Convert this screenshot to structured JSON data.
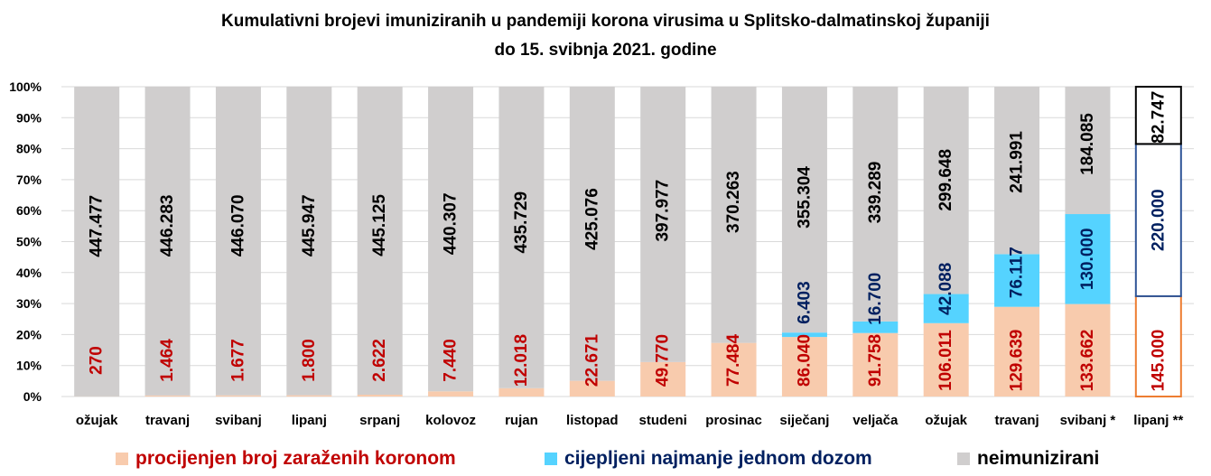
{
  "title": "Kumulativni brojevi imuniziranih u pandemiji korona virusima u Splitsko-dalmatinskoj županiji",
  "subtitle": "do 15. svibnja 2021. godine",
  "colors": {
    "infected": "#F8CBAD",
    "vaccinated": "#55D3FF",
    "unimmunized": "#D0CECE",
    "infected_text": "#C00000",
    "vaccinated_text": "#002060",
    "unimmunized_text": "#000000",
    "outline_infected": "#ED7D31",
    "outline_vaccinated": "#2F5597"
  },
  "legend": [
    {
      "label": "procijenjen broj zaraženih koronom",
      "color": "#F8CBAD",
      "text_color": "#C00000"
    },
    {
      "label": "cijepljeni najmanje jednom dozom",
      "color": "#55D3FF",
      "text_color": "#002060"
    },
    {
      "label": "neimunizirani",
      "color": "#D0CECE",
      "text_color": "#000000"
    }
  ],
  "chart_data": {
    "type": "bar",
    "stacked": "percent",
    "title": "Kumulativni brojevi imuniziranih u pandemiji korona virusima u Splitsko-dalmatinskoj županiji",
    "subtitle": "do 15. svibnja 2021. godine",
    "xlabel": "",
    "ylabel": "",
    "ylim": [
      0,
      100
    ],
    "yticks": [
      "0%",
      "10%",
      "20%",
      "30%",
      "40%",
      "50%",
      "60%",
      "70%",
      "80%",
      "90%",
      "100%"
    ],
    "grid": true,
    "legend_position": "bottom",
    "categories": [
      "ožujak",
      "travanj",
      "svibanj",
      "lipanj",
      "srpanj",
      "kolovoz",
      "rujan",
      "listopad",
      "studeni",
      "prosinac",
      "siječanj",
      "veljača",
      "ožujak",
      "travanj",
      "svibanj *",
      "lipanj **"
    ],
    "series": [
      {
        "name": "procijenjen broj zaraženih koronom",
        "values": [
          270,
          1464,
          1677,
          1800,
          2622,
          7440,
          12018,
          22671,
          49770,
          77484,
          86040,
          91758,
          106011,
          129639,
          133662,
          145000
        ],
        "labels": [
          "270",
          "1.464",
          "1.677",
          "1.800",
          "2.622",
          "7.440",
          "12.018",
          "22.671",
          "49.770",
          "77.484",
          "86.040",
          "91.758",
          "106.011",
          "129.639",
          "133.662",
          "145.000"
        ]
      },
      {
        "name": "cijepljeni najmanje jednom dozom",
        "values": [
          0,
          0,
          0,
          0,
          0,
          0,
          0,
          0,
          0,
          0,
          6403,
          16700,
          42088,
          76117,
          130000,
          220000
        ],
        "labels": [
          "",
          "",
          "",
          "",
          "",
          "",
          "",
          "",
          "",
          "",
          "6.403",
          "16.700",
          "42.088",
          "76.117",
          "130.000",
          "220.000"
        ]
      },
      {
        "name": "neimunizirani",
        "values": [
          447477,
          446283,
          446070,
          445947,
          445125,
          440307,
          435729,
          425076,
          397977,
          370263,
          355304,
          339289,
          299648,
          241991,
          184085,
          82747
        ],
        "labels": [
          "447.477",
          "446.283",
          "446.070",
          "445.947",
          "445.125",
          "440.307",
          "435.729",
          "425.076",
          "397.977",
          "370.263",
          "355.304",
          "339.289",
          "299.648",
          "241.991",
          "184.085",
          "82.747"
        ]
      }
    ],
    "projected_category": "lipanj **"
  }
}
